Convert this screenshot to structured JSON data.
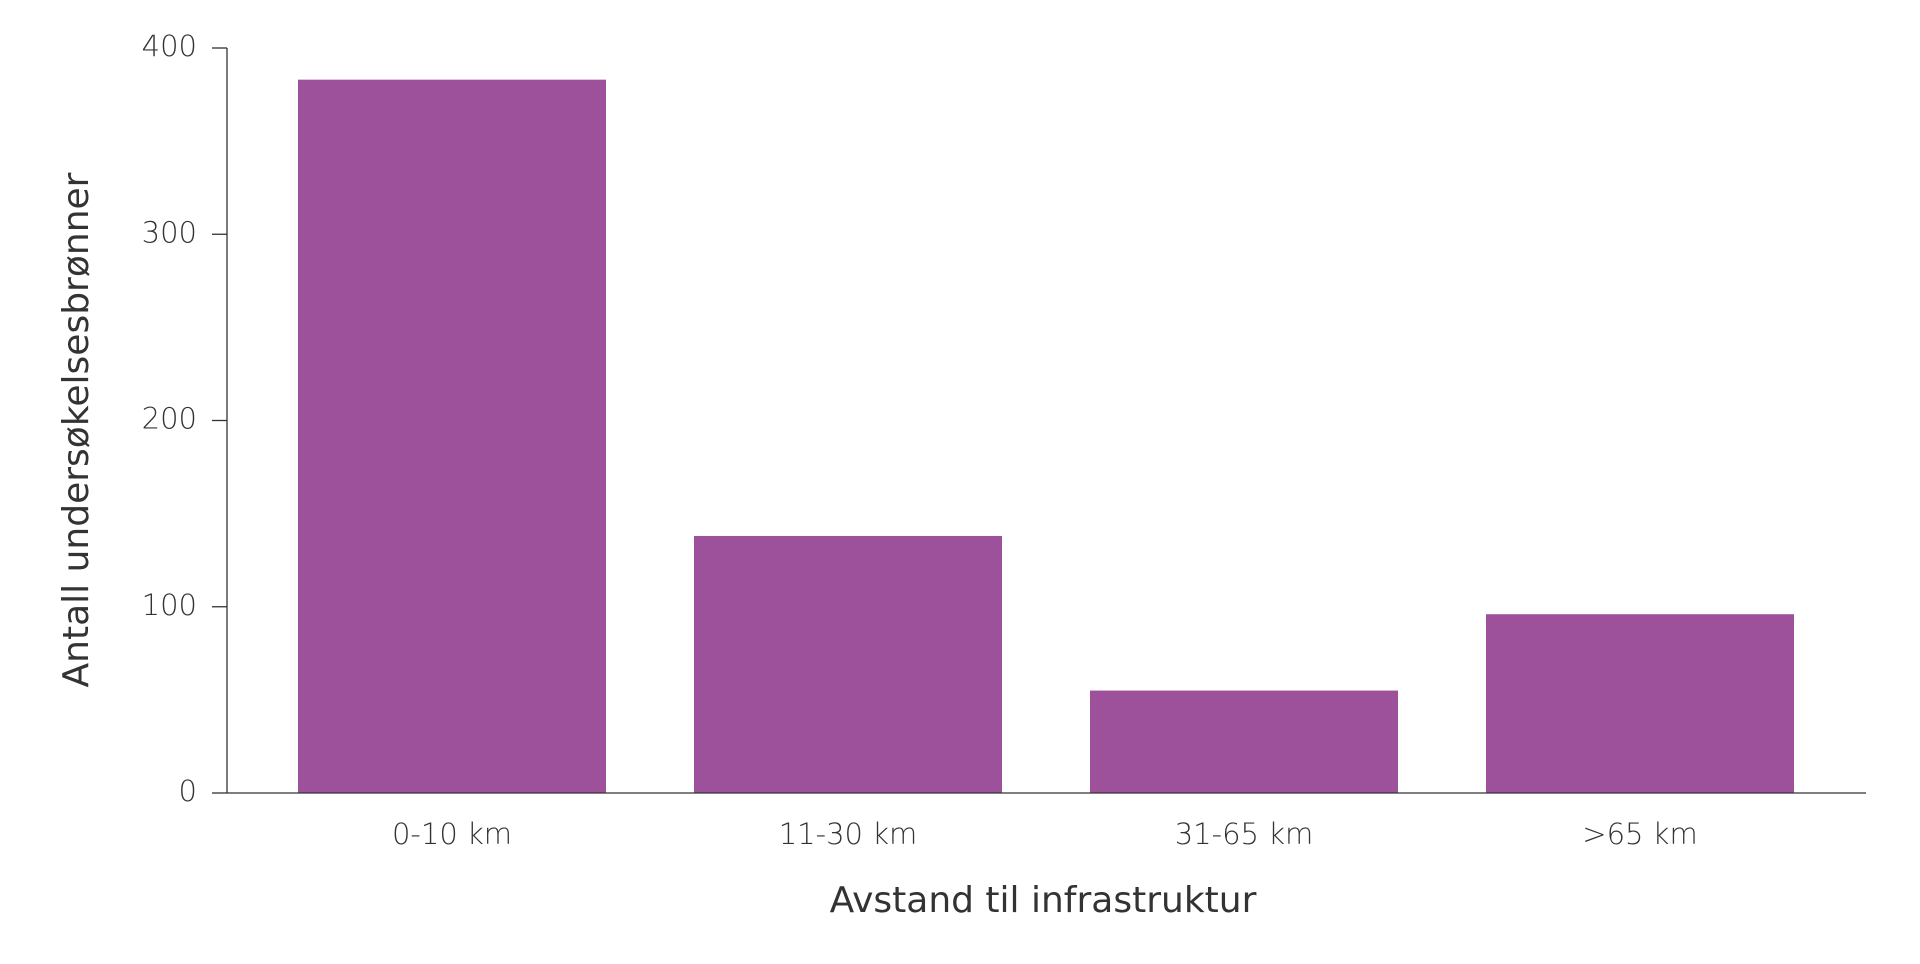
{
  "chart_data": {
    "type": "bar",
    "x_label": "Avstand til infrastruktur",
    "y_label": "Antall undersøkelsesbrønner",
    "categories": [
      "0-10 km",
      "11-30 km",
      "31-65 km",
      ">65 km"
    ],
    "values": [
      383,
      138,
      55,
      96
    ],
    "color": "#9e519b",
    "ylim": [
      0,
      400
    ],
    "yticks": [
      0,
      100,
      200,
      300,
      400
    ],
    "grid": false
  }
}
